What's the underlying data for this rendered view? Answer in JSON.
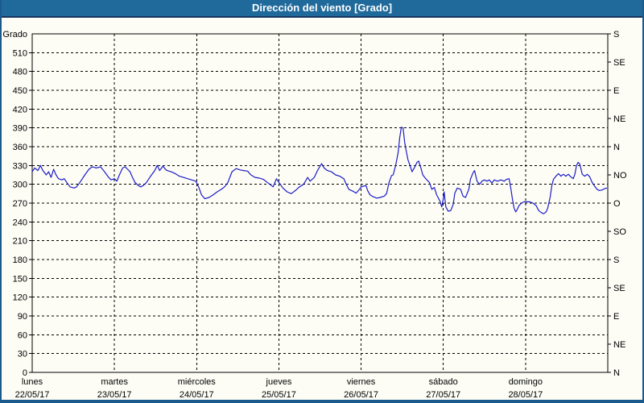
{
  "window": {
    "title": "Dirección del viento [Grado]"
  },
  "colors": {
    "titlebar_bg": "#1F699B",
    "titlebar_border": "#16355E",
    "titlebar_text": "#FFFFFF",
    "frame_border": "#1C5A8C",
    "chart_bg": "#FDFDF6",
    "line": "#1C1CC8",
    "grid": "#000000",
    "text": "#000000"
  },
  "chart_data": {
    "type": "line",
    "title": "Dirección del viento [Grado]",
    "ylabel": "Grado",
    "y_min": 0,
    "y_max": 540,
    "y_tick_step": 30,
    "y_ticks": [
      0,
      30,
      60,
      90,
      120,
      150,
      180,
      210,
      240,
      270,
      300,
      330,
      360,
      390,
      420,
      450,
      480,
      510
    ],
    "right_axis": {
      "step_deg": 45,
      "labels_bottom_to_top": [
        "N",
        "NE",
        "E",
        "SE",
        "S",
        "SO",
        "O",
        "NO",
        "N",
        "NE",
        "E",
        "SE",
        "S"
      ]
    },
    "x_axis": {
      "days": [
        {
          "name": "lunes",
          "date": "22/05/17"
        },
        {
          "name": "martes",
          "date": "23/05/17"
        },
        {
          "name": "miércoles",
          "date": "24/05/17"
        },
        {
          "name": "jueves",
          "date": "25/05/17"
        },
        {
          "name": "viernes",
          "date": "26/05/17"
        },
        {
          "name": "sábado",
          "date": "27/05/17"
        },
        {
          "name": "domingo",
          "date": "28/05/17"
        }
      ]
    },
    "grid": "dashed",
    "legend": "none",
    "series": [
      {
        "name": "Dirección del viento",
        "unit": "Grado",
        "color": "#1C1CC8",
        "points": [
          [
            0.0,
            320
          ],
          [
            0.03,
            326
          ],
          [
            0.07,
            322
          ],
          [
            0.1,
            330
          ],
          [
            0.13,
            322
          ],
          [
            0.17,
            315
          ],
          [
            0.2,
            320
          ],
          [
            0.23,
            311
          ],
          [
            0.26,
            324
          ],
          [
            0.29,
            315
          ],
          [
            0.32,
            309
          ],
          [
            0.36,
            307
          ],
          [
            0.39,
            309
          ],
          [
            0.42,
            303
          ],
          [
            0.46,
            296
          ],
          [
            0.51,
            294
          ],
          [
            0.54,
            296
          ],
          [
            0.59,
            305
          ],
          [
            0.64,
            315
          ],
          [
            0.69,
            324
          ],
          [
            0.73,
            328
          ],
          [
            0.78,
            326
          ],
          [
            0.83,
            328
          ],
          [
            0.88,
            320
          ],
          [
            0.93,
            311
          ],
          [
            0.96,
            307
          ],
          [
            1.0,
            309
          ],
          [
            1.03,
            305
          ],
          [
            1.06,
            315
          ],
          [
            1.1,
            326
          ],
          [
            1.13,
            328
          ],
          [
            1.16,
            324
          ],
          [
            1.19,
            320
          ],
          [
            1.22,
            311
          ],
          [
            1.25,
            303
          ],
          [
            1.29,
            298
          ],
          [
            1.32,
            296
          ],
          [
            1.35,
            298
          ],
          [
            1.39,
            303
          ],
          [
            1.44,
            313
          ],
          [
            1.49,
            322
          ],
          [
            1.52,
            330
          ],
          [
            1.55,
            322
          ],
          [
            1.59,
            329
          ],
          [
            1.62,
            324
          ],
          [
            1.64,
            322
          ],
          [
            1.69,
            320
          ],
          [
            1.74,
            317
          ],
          [
            1.79,
            313
          ],
          [
            1.84,
            311
          ],
          [
            1.89,
            309
          ],
          [
            1.94,
            307
          ],
          [
            1.99,
            305
          ],
          [
            2.03,
            294
          ],
          [
            2.06,
            283
          ],
          [
            2.1,
            277
          ],
          [
            2.15,
            279
          ],
          [
            2.2,
            283
          ],
          [
            2.25,
            288
          ],
          [
            2.3,
            292
          ],
          [
            2.34,
            296
          ],
          [
            2.38,
            303
          ],
          [
            2.43,
            320
          ],
          [
            2.48,
            325
          ],
          [
            2.53,
            323
          ],
          [
            2.57,
            322
          ],
          [
            2.62,
            321
          ],
          [
            2.66,
            315
          ],
          [
            2.71,
            311
          ],
          [
            2.76,
            310
          ],
          [
            2.81,
            308
          ],
          [
            2.86,
            303
          ],
          [
            2.91,
            298
          ],
          [
            2.93,
            296
          ],
          [
            2.97,
            309
          ],
          [
            3.0,
            303
          ],
          [
            3.05,
            294
          ],
          [
            3.1,
            288
          ],
          [
            3.15,
            285
          ],
          [
            3.2,
            290
          ],
          [
            3.25,
            296
          ],
          [
            3.3,
            300
          ],
          [
            3.35,
            311
          ],
          [
            3.38,
            305
          ],
          [
            3.43,
            311
          ],
          [
            3.47,
            322
          ],
          [
            3.52,
            333
          ],
          [
            3.55,
            326
          ],
          [
            3.59,
            322
          ],
          [
            3.64,
            320
          ],
          [
            3.69,
            315
          ],
          [
            3.74,
            313
          ],
          [
            3.79,
            309
          ],
          [
            3.82,
            300
          ],
          [
            3.85,
            292
          ],
          [
            3.9,
            289
          ],
          [
            3.94,
            286
          ],
          [
            3.98,
            292
          ],
          [
            4.0,
            296
          ],
          [
            4.03,
            297
          ],
          [
            4.06,
            298
          ],
          [
            4.08,
            290
          ],
          [
            4.11,
            283
          ],
          [
            4.15,
            280
          ],
          [
            4.19,
            278
          ],
          [
            4.23,
            279
          ],
          [
            4.28,
            281
          ],
          [
            4.31,
            285
          ],
          [
            4.34,
            303
          ],
          [
            4.37,
            314
          ],
          [
            4.39,
            315
          ],
          [
            4.42,
            330
          ],
          [
            4.45,
            350
          ],
          [
            4.47,
            375
          ],
          [
            4.49,
            391
          ],
          [
            4.51,
            390
          ],
          [
            4.53,
            367
          ],
          [
            4.55,
            352
          ],
          [
            4.57,
            339
          ],
          [
            4.59,
            332
          ],
          [
            4.62,
            320
          ],
          [
            4.65,
            327
          ],
          [
            4.68,
            335
          ],
          [
            4.7,
            337
          ],
          [
            4.73,
            325
          ],
          [
            4.75,
            315
          ],
          [
            4.78,
            310
          ],
          [
            4.8,
            307
          ],
          [
            4.83,
            303
          ],
          [
            4.86,
            292
          ],
          [
            4.89,
            295
          ],
          [
            4.92,
            283
          ],
          [
            4.96,
            273
          ],
          [
            4.98,
            264
          ],
          [
            5.0,
            277
          ],
          [
            5.01,
            288
          ],
          [
            5.03,
            264
          ],
          [
            5.06,
            257
          ],
          [
            5.09,
            258
          ],
          [
            5.12,
            268
          ],
          [
            5.14,
            286
          ],
          [
            5.17,
            294
          ],
          [
            5.21,
            292
          ],
          [
            5.24,
            281
          ],
          [
            5.27,
            279
          ],
          [
            5.31,
            292
          ],
          [
            5.33,
            308
          ],
          [
            5.36,
            318
          ],
          [
            5.38,
            322
          ],
          [
            5.41,
            305
          ],
          [
            5.44,
            300
          ],
          [
            5.47,
            305
          ],
          [
            5.5,
            307
          ],
          [
            5.53,
            305
          ],
          [
            5.56,
            307
          ],
          [
            5.59,
            302
          ],
          [
            5.62,
            307
          ],
          [
            5.66,
            305
          ],
          [
            5.7,
            307
          ],
          [
            5.74,
            305
          ],
          [
            5.77,
            308
          ],
          [
            5.8,
            309
          ],
          [
            5.82,
            294
          ],
          [
            5.84,
            277
          ],
          [
            5.86,
            262
          ],
          [
            5.88,
            256
          ],
          [
            5.9,
            260
          ],
          [
            5.92,
            266
          ],
          [
            5.95,
            270
          ],
          [
            5.98,
            272
          ],
          [
            6.02,
            272
          ],
          [
            6.05,
            272
          ],
          [
            6.09,
            270
          ],
          [
            6.13,
            266
          ],
          [
            6.16,
            258
          ],
          [
            6.19,
            255
          ],
          [
            6.22,
            253
          ],
          [
            6.25,
            256
          ],
          [
            6.27,
            262
          ],
          [
            6.3,
            280
          ],
          [
            6.32,
            298
          ],
          [
            6.34,
            308
          ],
          [
            6.37,
            313
          ],
          [
            6.4,
            317
          ],
          [
            6.43,
            313
          ],
          [
            6.46,
            316
          ],
          [
            6.49,
            313
          ],
          [
            6.52,
            316
          ],
          [
            6.55,
            312
          ],
          [
            6.58,
            309
          ],
          [
            6.6,
            316
          ],
          [
            6.62,
            330
          ],
          [
            6.64,
            335
          ],
          [
            6.66,
            332
          ],
          [
            6.69,
            316
          ],
          [
            6.72,
            313
          ],
          [
            6.75,
            316
          ],
          [
            6.78,
            312
          ],
          [
            6.81,
            303
          ],
          [
            6.84,
            297
          ],
          [
            6.87,
            292
          ],
          [
            6.9,
            290
          ],
          [
            6.93,
            291
          ],
          [
            6.96,
            293
          ],
          [
            6.99,
            294
          ]
        ]
      }
    ]
  }
}
